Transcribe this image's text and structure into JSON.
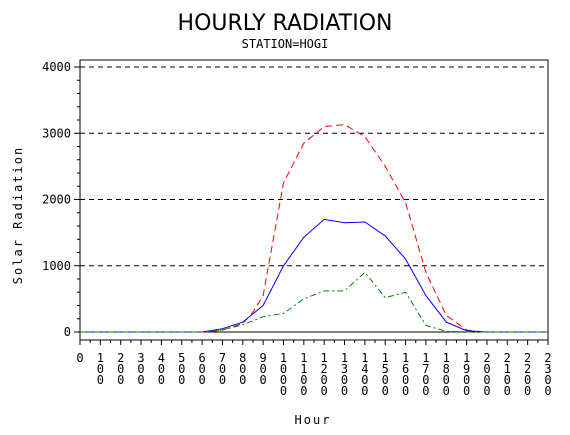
{
  "chart_data": {
    "type": "line",
    "title": "HOURLY RADIATION",
    "subtitle": "STATION=HOGI",
    "xlabel": "Hour",
    "ylabel": "Solar Radiation",
    "ylim": [
      0,
      4000
    ],
    "yticks": [
      0,
      1000,
      2000,
      3000,
      4000
    ],
    "ytick_labels": [
      "0",
      "1000",
      "2000",
      "3000",
      "4000"
    ],
    "xlim": [
      0,
      2300
    ],
    "xtick_labels": [
      "0",
      "100",
      "200",
      "300",
      "400",
      "500",
      "600",
      "700",
      "800",
      "900",
      "1000",
      "1100",
      "1200",
      "1300",
      "1400",
      "1500",
      "1600",
      "1700",
      "1800",
      "1900",
      "2000",
      "2100",
      "2200",
      "2300"
    ],
    "grid": "horizontal-dashed",
    "x": [
      0,
      100,
      200,
      300,
      400,
      500,
      600,
      700,
      800,
      900,
      1000,
      1100,
      1200,
      1300,
      1400,
      1500,
      1600,
      1700,
      1800,
      1900,
      2000,
      2100,
      2200,
      2300
    ],
    "series": [
      {
        "color": "#ff0000",
        "dash": "dashed",
        "x": [
          0,
          100,
          200,
          300,
          400,
          500,
          600,
          650,
          700,
          800,
          850,
          900,
          950,
          1000,
          1100,
          1200,
          1300,
          1400,
          1500,
          1600,
          1700,
          1800,
          1900,
          1950,
          2000,
          2100,
          2200,
          2300
        ],
        "values": [
          0,
          0,
          0,
          0,
          0,
          0,
          0,
          10,
          30,
          130,
          300,
          550,
          1400,
          2250,
          2850,
          3100,
          3130,
          2950,
          2500,
          1950,
          900,
          250,
          30,
          10,
          0,
          0,
          0,
          0
        ]
      },
      {
        "color": "#0000ff",
        "dash": "solid",
        "x": [
          0,
          100,
          200,
          300,
          400,
          500,
          600,
          700,
          800,
          900,
          1000,
          1100,
          1200,
          1300,
          1400,
          1500,
          1600,
          1700,
          1800,
          1900,
          2000,
          2100,
          2200,
          2300
        ],
        "values": [
          0,
          0,
          0,
          0,
          0,
          0,
          0,
          50,
          150,
          400,
          1000,
          1430,
          1700,
          1650,
          1660,
          1450,
          1100,
          550,
          150,
          20,
          0,
          0,
          0,
          0
        ]
      },
      {
        "color": "#008000",
        "dash": "dashdot",
        "x": [
          0,
          100,
          200,
          300,
          400,
          500,
          600,
          700,
          800,
          900,
          1000,
          1100,
          1200,
          1300,
          1400,
          1500,
          1600,
          1700,
          1800,
          1900,
          2000,
          2100,
          2200,
          2300
        ],
        "values": [
          0,
          0,
          0,
          0,
          0,
          0,
          0,
          30,
          110,
          230,
          280,
          500,
          620,
          620,
          900,
          520,
          600,
          100,
          10,
          0,
          0,
          0,
          0,
          0
        ]
      }
    ]
  }
}
